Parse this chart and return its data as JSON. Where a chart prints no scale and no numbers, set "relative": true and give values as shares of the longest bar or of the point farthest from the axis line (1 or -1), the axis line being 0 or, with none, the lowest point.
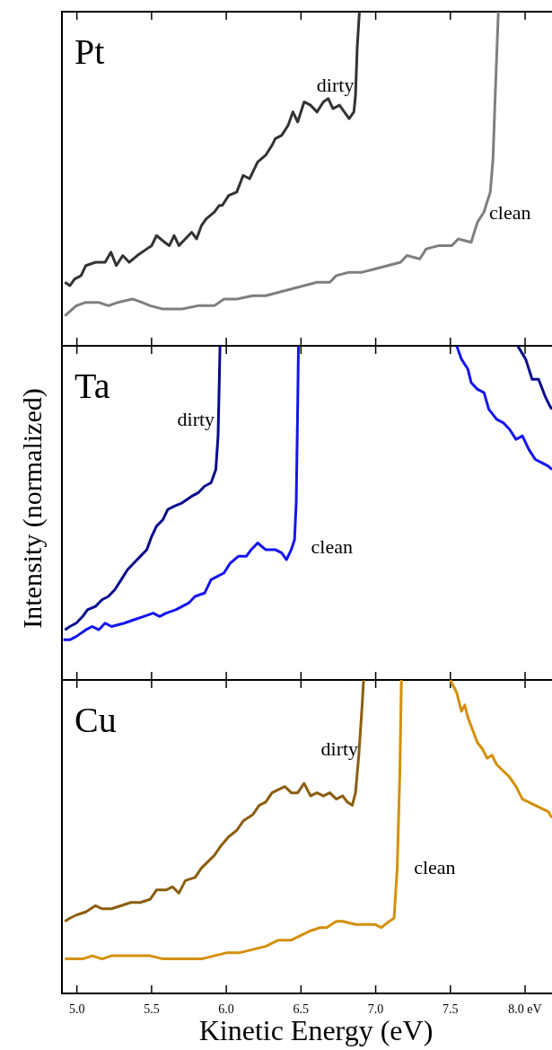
{
  "chart_data": [
    {
      "type": "line",
      "title": "Pt",
      "relative": true,
      "xlim": [
        4.9,
        8.18
      ],
      "xticks": [
        {
          "value": 5,
          "label": null
        },
        {
          "value": 5.5,
          "label": null
        },
        {
          "value": 6,
          "label": null
        },
        {
          "value": 6.5,
          "label": null
        },
        {
          "value": 7,
          "label": null
        },
        {
          "value": 7.5,
          "label": null
        },
        {
          "value": 8,
          "label": null
        }
      ],
      "tick_labels": false,
      "series": [
        {
          "name": "dirty",
          "color": "#333333",
          "x": [
            4.92,
            4.953,
            4.985,
            5.028,
            5.06,
            5.125,
            5.189,
            5.228,
            5.264,
            5.307,
            5.35,
            5.404,
            5.468,
            5.501,
            5.533,
            5.587,
            5.619,
            5.651,
            5.683,
            5.726,
            5.769,
            5.801,
            5.834,
            5.866,
            5.92,
            5.952,
            5.973,
            6.016,
            6.07,
            6.113,
            6.156,
            6.21,
            6.263,
            6.306,
            6.328,
            6.371,
            6.414,
            6.446,
            6.478,
            6.521,
            6.564,
            6.607,
            6.65,
            6.682,
            6.714,
            6.758,
            6.79,
            6.822,
            6.854,
            6.865,
            6.876,
            6.891
          ],
          "values": [
            0.19,
            0.18,
            0.2,
            0.21,
            0.24,
            0.25,
            0.25,
            0.28,
            0.24,
            0.27,
            0.25,
            0.27,
            0.29,
            0.3,
            0.33,
            0.31,
            0.3,
            0.33,
            0.3,
            0.32,
            0.34,
            0.32,
            0.36,
            0.38,
            0.4,
            0.42,
            0.42,
            0.45,
            0.46,
            0.51,
            0.5,
            0.55,
            0.57,
            0.6,
            0.62,
            0.63,
            0.66,
            0.7,
            0.67,
            0.73,
            0.72,
            0.7,
            0.73,
            0.74,
            0.71,
            0.72,
            0.7,
            0.68,
            0.7,
            0.75,
            0.89,
            1
          ]
        },
        {
          "name": "clean",
          "color": "#7f7f7f",
          "x": [
            4.92,
            4.996,
            5.06,
            5.146,
            5.211,
            5.275,
            5.372,
            5.436,
            5.49,
            5.576,
            5.705,
            5.812,
            5.92,
            5.984,
            6.07,
            6.177,
            6.263,
            6.349,
            6.435,
            6.521,
            6.607,
            6.693,
            6.736,
            6.822,
            6.908,
            6.994,
            7.08,
            7.166,
            7.209,
            7.295,
            7.338,
            7.424,
            7.51,
            7.553,
            7.639,
            7.681,
            7.724,
            7.767,
            7.785,
            7.8,
            7.821
          ],
          "values": [
            0.09,
            0.12,
            0.13,
            0.13,
            0.12,
            0.13,
            0.14,
            0.13,
            0.12,
            0.11,
            0.11,
            0.12,
            0.12,
            0.14,
            0.14,
            0.15,
            0.15,
            0.16,
            0.17,
            0.18,
            0.19,
            0.19,
            0.21,
            0.22,
            0.22,
            0.23,
            0.24,
            0.25,
            0.27,
            0.26,
            0.29,
            0.3,
            0.3,
            0.32,
            0.31,
            0.37,
            0.4,
            0.46,
            0.56,
            0.75,
            1
          ]
        }
      ]
    },
    {
      "type": "line",
      "title": "Ta",
      "ylabel": "Intensity (normalized)",
      "relative": true,
      "xlim": [
        4.9,
        8.18
      ],
      "xticks": [
        {
          "value": 5,
          "label": null
        },
        {
          "value": 5.5,
          "label": null
        },
        {
          "value": 6,
          "label": null
        },
        {
          "value": 6.5,
          "label": null
        },
        {
          "value": 7,
          "label": null
        },
        {
          "value": 7.5,
          "label": null
        },
        {
          "value": 8,
          "label": null
        }
      ],
      "tick_labels": false,
      "series": [
        {
          "name": "dirty",
          "color": "#0a0a8c",
          "x": [
            4.92,
            4.953,
            4.996,
            5.039,
            5.071,
            5.125,
            5.168,
            5.211,
            5.254,
            5.297,
            5.339,
            5.382,
            5.425,
            5.468,
            5.501,
            5.533,
            5.576,
            5.608,
            5.651,
            5.705,
            5.769,
            5.812,
            5.855,
            5.898,
            5.93,
            5.945,
            5.952,
            5.958,
            7.0,
            7.95,
            8.004,
            8.047,
            8.09,
            8.133,
            8.165,
            8.18
          ],
          "values": [
            0.15,
            0.16,
            0.17,
            0.19,
            0.21,
            0.22,
            0.24,
            0.25,
            0.27,
            0.3,
            0.33,
            0.35,
            0.37,
            0.39,
            0.43,
            0.46,
            0.48,
            0.51,
            0.52,
            0.53,
            0.55,
            0.56,
            0.58,
            0.59,
            0.63,
            0.73,
            0.87,
            1,
            null,
            1,
            0.96,
            0.9,
            0.9,
            0.85,
            0.82,
            0.81
          ]
        },
        {
          "name": "clean",
          "color": "#1414f0",
          "x": [
            4.91,
            4.953,
            4.996,
            5.06,
            5.103,
            5.146,
            5.189,
            5.232,
            5.318,
            5.382,
            5.447,
            5.511,
            5.554,
            5.597,
            5.662,
            5.705,
            5.748,
            5.791,
            5.855,
            5.898,
            5.941,
            5.984,
            6.027,
            6.081,
            6.134,
            6.167,
            6.21,
            6.263,
            6.328,
            6.371,
            6.403,
            6.435,
            6.457,
            6.468,
            6.478,
            6.483,
            7.0,
            7.542,
            7.574,
            7.617,
            7.639,
            7.681,
            7.725,
            7.757,
            7.81,
            7.853,
            7.896,
            7.939,
            7.982,
            8.025,
            8.068,
            8.111,
            8.154,
            8.18
          ],
          "values": [
            0.12,
            0.12,
            0.13,
            0.15,
            0.16,
            0.15,
            0.17,
            0.16,
            0.17,
            0.18,
            0.19,
            0.2,
            0.19,
            0.2,
            0.21,
            0.22,
            0.23,
            0.25,
            0.26,
            0.3,
            0.31,
            0.32,
            0.35,
            0.37,
            0.37,
            0.39,
            0.41,
            0.39,
            0.39,
            0.38,
            0.36,
            0.39,
            0.42,
            0.53,
            0.82,
            1,
            null,
            1,
            0.96,
            0.93,
            0.89,
            0.87,
            0.86,
            0.81,
            0.78,
            0.77,
            0.75,
            0.72,
            0.73,
            0.69,
            0.66,
            0.65,
            0.64,
            0.63
          ]
        }
      ]
    },
    {
      "type": "line",
      "title": "Cu",
      "xlabel": "Kinetic Energy (eV)",
      "relative": true,
      "xlim": [
        4.9,
        8.18
      ],
      "xticks": [
        {
          "value": 5,
          "label": "5.0"
        },
        {
          "value": 5.5,
          "label": "5.5"
        },
        {
          "value": 6,
          "label": "6.0"
        },
        {
          "value": 6.5,
          "label": "6.5"
        },
        {
          "value": 7,
          "label": "7.0"
        },
        {
          "value": 7.5,
          "label": "7.5"
        },
        {
          "value": 8,
          "label": "8.0 eV"
        }
      ],
      "tick_labels": "x",
      "series": [
        {
          "name": "dirty",
          "color": "#8b5e0f",
          "x": [
            4.92,
            4.953,
            4.996,
            5.06,
            5.125,
            5.168,
            5.232,
            5.297,
            5.361,
            5.425,
            5.49,
            5.533,
            5.597,
            5.64,
            5.683,
            5.726,
            5.791,
            5.834,
            5.877,
            5.92,
            5.963,
            6.016,
            6.07,
            6.113,
            6.177,
            6.22,
            6.263,
            6.306,
            6.349,
            6.392,
            6.435,
            6.478,
            6.521,
            6.564,
            6.607,
            6.65,
            6.693,
            6.736,
            6.779,
            6.811,
            6.843,
            6.865,
            6.887,
            6.908,
            6.919
          ],
          "values": [
            0.23,
            0.24,
            0.25,
            0.26,
            0.28,
            0.27,
            0.27,
            0.28,
            0.29,
            0.29,
            0.3,
            0.33,
            0.33,
            0.34,
            0.32,
            0.36,
            0.37,
            0.4,
            0.42,
            0.44,
            0.47,
            0.5,
            0.52,
            0.55,
            0.57,
            0.6,
            0.61,
            0.64,
            0.65,
            0.66,
            0.64,
            0.64,
            0.67,
            0.63,
            0.64,
            0.63,
            0.64,
            0.62,
            0.63,
            0.61,
            0.6,
            0.64,
            0.76,
            0.91,
            1
          ]
        },
        {
          "name": "clean",
          "color": "#d4900a",
          "x": [
            4.92,
            4.974,
            5.039,
            5.103,
            5.168,
            5.232,
            5.318,
            5.404,
            5.49,
            5.576,
            5.662,
            5.748,
            5.834,
            5.92,
            6.006,
            6.092,
            6.177,
            6.263,
            6.349,
            6.435,
            6.521,
            6.564,
            6.629,
            6.672,
            6.736,
            6.779,
            6.865,
            6.93,
            6.994,
            7.037,
            7.091,
            7.123,
            7.144,
            7.162,
            7.172,
            7.3,
            7.499,
            7.542,
            7.574,
            7.596,
            7.617,
            7.649,
            7.681,
            7.714,
            7.746,
            7.778,
            7.81,
            7.853,
            7.896,
            7.939,
            7.982,
            8.025,
            8.068,
            8.111,
            8.154,
            8.18
          ],
          "values": [
            0.11,
            0.11,
            0.11,
            0.12,
            0.11,
            0.12,
            0.12,
            0.12,
            0.12,
            0.11,
            0.11,
            0.11,
            0.11,
            0.12,
            0.13,
            0.13,
            0.14,
            0.15,
            0.17,
            0.17,
            0.19,
            0.2,
            0.21,
            0.21,
            0.23,
            0.23,
            0.22,
            0.22,
            0.22,
            0.21,
            0.23,
            0.24,
            0.4,
            0.71,
            1,
            null,
            1,
            0.96,
            0.9,
            0.92,
            0.88,
            0.84,
            0.8,
            0.78,
            0.75,
            0.76,
            0.73,
            0.71,
            0.69,
            0.66,
            0.62,
            0.61,
            0.6,
            0.59,
            0.58,
            0.56
          ]
        }
      ]
    }
  ]
}
